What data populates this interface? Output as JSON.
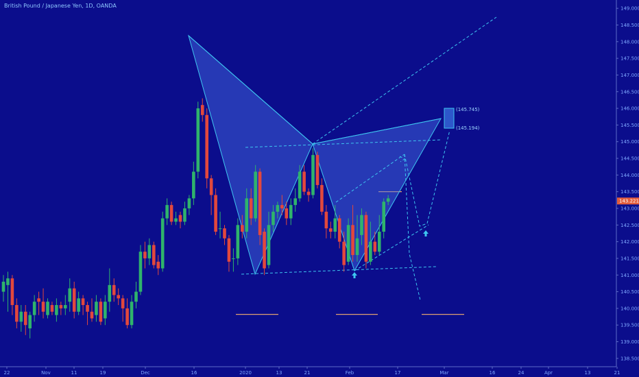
{
  "chart_data": {
    "type": "candlestick",
    "title": "British Pound / Japanese Yen, 1D, OANDA",
    "ylim": [
      138.25,
      149.25
    ],
    "y_ticks": [
      "138.500",
      "139.000",
      "139.500",
      "140.000",
      "140.500",
      "141.000",
      "141.500",
      "142.000",
      "142.500",
      "143.000",
      "143.500",
      "144.000",
      "144.500",
      "145.000",
      "145.500",
      "146.000",
      "146.500",
      "147.000",
      "147.500",
      "148.000",
      "148.500",
      "149.000"
    ],
    "x_ticks": [
      "22",
      "Nov",
      "11",
      "19",
      "Dec",
      "16",
      "2020",
      "13",
      "21",
      "Feb",
      "17",
      "Mar",
      "16",
      "24",
      "Apr",
      "13",
      "21"
    ],
    "last_price": "143.221",
    "target_labels": [
      "(145.745)",
      "(145.194)"
    ],
    "colors": {
      "background": "#0b0d8c",
      "up": "#2fb36c",
      "down": "#e2483d",
      "pattern": "#3ec6f0",
      "level": "#e0a070"
    },
    "candles": [
      [
        140.5,
        140.8,
        140.2,
        141.0
      ],
      [
        140.7,
        140.9,
        139.9,
        141.1
      ],
      [
        140.9,
        140.1,
        139.8,
        141.0
      ],
      [
        140.1,
        139.6,
        139.4,
        140.3
      ],
      [
        139.6,
        139.9,
        139.3,
        140.1
      ],
      [
        139.9,
        139.5,
        139.2,
        140.1
      ],
      [
        139.4,
        139.8,
        139.1,
        139.9
      ],
      [
        139.8,
        140.2,
        139.6,
        140.4
      ],
      [
        140.3,
        140.2,
        139.8,
        140.5
      ],
      [
        140.2,
        139.9,
        139.7,
        140.6
      ],
      [
        139.8,
        140.2,
        139.7,
        140.3
      ],
      [
        140.1,
        139.9,
        139.8,
        140.2
      ],
      [
        139.8,
        140.1,
        139.6,
        140.3
      ],
      [
        140.1,
        140.0,
        139.8,
        140.2
      ],
      [
        140.0,
        140.1,
        139.8,
        140.4
      ],
      [
        140.2,
        140.6,
        139.9,
        140.9
      ],
      [
        140.6,
        139.9,
        139.7,
        140.8
      ],
      [
        139.9,
        140.3,
        139.8,
        140.5
      ],
      [
        140.3,
        140.1,
        139.8,
        140.4
      ],
      [
        140.1,
        139.9,
        139.5,
        140.2
      ],
      [
        139.9,
        139.7,
        139.6,
        140.3
      ],
      [
        139.8,
        140.2,
        139.6,
        140.4
      ],
      [
        140.2,
        139.6,
        139.5,
        140.3
      ],
      [
        139.7,
        140.2,
        139.5,
        140.4
      ],
      [
        140.2,
        140.7,
        139.9,
        141.2
      ],
      [
        140.7,
        140.4,
        140.2,
        140.9
      ],
      [
        140.4,
        140.3,
        140.1,
        140.6
      ],
      [
        140.3,
        140.0,
        139.6,
        140.4
      ],
      [
        140.0,
        139.5,
        139.4,
        140.3
      ],
      [
        139.5,
        140.2,
        139.4,
        140.4
      ],
      [
        140.2,
        140.5,
        140.0,
        140.8
      ],
      [
        140.5,
        141.7,
        140.4,
        141.9
      ],
      [
        141.7,
        141.5,
        141.2,
        142.0
      ],
      [
        141.5,
        141.9,
        141.3,
        142.1
      ],
      [
        141.9,
        141.3,
        141.2,
        142.0
      ],
      [
        141.4,
        141.2,
        141.0,
        141.6
      ],
      [
        141.2,
        142.7,
        141.1,
        142.9
      ],
      [
        142.7,
        143.1,
        142.5,
        143.3
      ],
      [
        143.1,
        142.6,
        142.5,
        143.2
      ],
      [
        142.6,
        142.7,
        142.5,
        142.9
      ],
      [
        142.8,
        142.6,
        142.4,
        142.9
      ],
      [
        142.6,
        143.0,
        142.5,
        143.2
      ],
      [
        143.0,
        143.3,
        142.8,
        143.4
      ],
      [
        143.3,
        144.1,
        143.1,
        144.4
      ],
      [
        144.1,
        146.0,
        143.9,
        146.2
      ],
      [
        146.1,
        145.8,
        145.6,
        146.3
      ],
      [
        145.8,
        143.9,
        143.6,
        146.0
      ],
      [
        143.9,
        143.4,
        142.8,
        144.0
      ],
      [
        143.4,
        142.3,
        142.2,
        143.6
      ],
      [
        142.4,
        142.4,
        142.1,
        142.9
      ],
      [
        142.4,
        142.1,
        141.9,
        142.5
      ],
      [
        142.1,
        141.4,
        141.1,
        142.2
      ],
      [
        141.5,
        141.5,
        141.1,
        141.8
      ],
      [
        141.5,
        142.5,
        141.3,
        142.7
      ],
      [
        142.5,
        142.3,
        142.1,
        142.8
      ],
      [
        142.3,
        143.3,
        142.1,
        143.6
      ],
      [
        143.3,
        142.7,
        142.5,
        143.6
      ],
      [
        142.7,
        144.1,
        142.6,
        144.3
      ],
      [
        144.1,
        142.2,
        141.9,
        144.2
      ],
      [
        142.3,
        141.2,
        141.0,
        142.4
      ],
      [
        141.3,
        142.5,
        141.2,
        142.9
      ],
      [
        142.5,
        142.9,
        142.3,
        143.1
      ],
      [
        142.9,
        143.1,
        142.7,
        143.2
      ],
      [
        143.1,
        143.0,
        142.8,
        143.4
      ],
      [
        143.0,
        142.7,
        142.5,
        143.2
      ],
      [
        142.7,
        143.1,
        142.5,
        143.3
      ],
      [
        143.1,
        143.3,
        142.9,
        143.6
      ],
      [
        143.3,
        144.1,
        143.2,
        144.3
      ],
      [
        144.1,
        143.5,
        143.4,
        144.3
      ],
      [
        143.5,
        143.4,
        143.2,
        143.6
      ],
      [
        143.4,
        144.6,
        143.3,
        144.8
      ],
      [
        144.6,
        143.7,
        143.6,
        144.7
      ],
      [
        143.7,
        142.9,
        142.8,
        143.9
      ],
      [
        142.9,
        142.4,
        142.1,
        143.1
      ],
      [
        142.4,
        142.3,
        142.1,
        142.6
      ],
      [
        142.3,
        142.7,
        142.1,
        143.1
      ],
      [
        142.7,
        142.0,
        141.8,
        142.8
      ],
      [
        142.0,
        141.3,
        141.1,
        142.3
      ],
      [
        141.4,
        142.5,
        141.3,
        142.7
      ],
      [
        142.5,
        141.6,
        141.4,
        143.1
      ],
      [
        141.6,
        142.1,
        141.4,
        142.8
      ],
      [
        142.2,
        142.8,
        141.9,
        143.0
      ],
      [
        142.8,
        141.4,
        141.2,
        142.9
      ],
      [
        141.4,
        142.0,
        141.3,
        142.6
      ],
      [
        142.0,
        141.7,
        141.6,
        142.3
      ],
      [
        141.7,
        142.3,
        141.6,
        142.8
      ],
      [
        142.3,
        143.2,
        142.1,
        143.3
      ],
      [
        143.2,
        143.3,
        143.1,
        143.4
      ]
    ],
    "pattern_points": [
      {
        "date_index": 44,
        "price": 148.0
      },
      {
        "date_index": 60,
        "price": 140.75
      },
      {
        "date_index": 74,
        "price": 144.75
      },
      {
        "date_index": 85,
        "price": 140.8
      },
      {
        "date_index": 104,
        "price": 145.5
      }
    ],
    "levels": [
      139.82,
      139.82,
      139.82
    ]
  }
}
